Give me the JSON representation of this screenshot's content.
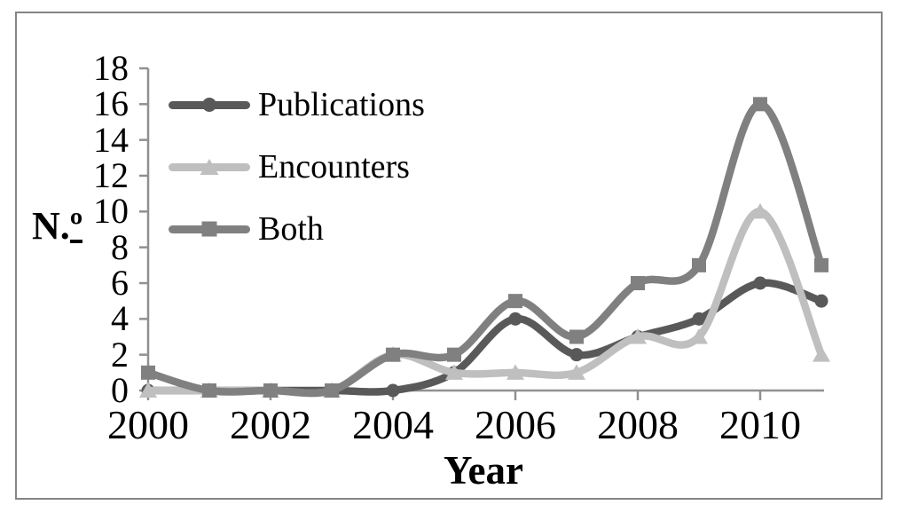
{
  "figure": {
    "background": "#ffffff",
    "frame_color": "#858585"
  },
  "chart_data": {
    "type": "line",
    "title": "",
    "xlabel": "Year",
    "ylabel": "N.º",
    "ylabel_prefix": "N.",
    "ylabel_ordinal": "º",
    "line_style": "smooth",
    "grid": false,
    "axis_color": "#909090",
    "x": [
      2000,
      2001,
      2002,
      2003,
      2004,
      2005,
      2006,
      2007,
      2008,
      2009,
      2010,
      2011
    ],
    "series": [
      {
        "name": "Publications",
        "marker": "circle",
        "color": "#595959",
        "values": [
          0,
          0,
          0,
          0,
          0,
          1,
          4,
          2,
          3,
          4,
          6,
          5
        ]
      },
      {
        "name": "Encounters",
        "marker": "triangle",
        "color": "#bfbfbf",
        "values": [
          0,
          0,
          0,
          0,
          2,
          1,
          1,
          1,
          3,
          3,
          10,
          2
        ]
      },
      {
        "name": "Both",
        "marker": "square",
        "color": "#808080",
        "values": [
          1,
          0,
          0,
          0,
          2,
          2,
          5,
          3,
          6,
          7,
          16,
          7
        ]
      }
    ],
    "ylim": [
      0,
      18
    ],
    "ytick_step": 2,
    "ytick_labels": [
      "0",
      "2",
      "4",
      "6",
      "8",
      "10",
      "12",
      "14",
      "16",
      "18"
    ],
    "xtick_years": [
      2000,
      2002,
      2004,
      2006,
      2008,
      2010
    ],
    "xtick_labels": [
      "2000",
      "2002",
      "2004",
      "2006",
      "2008",
      "2010"
    ],
    "legend": {
      "position": "top-left",
      "entries": [
        "Publications",
        "Encounters",
        "Both"
      ]
    }
  }
}
